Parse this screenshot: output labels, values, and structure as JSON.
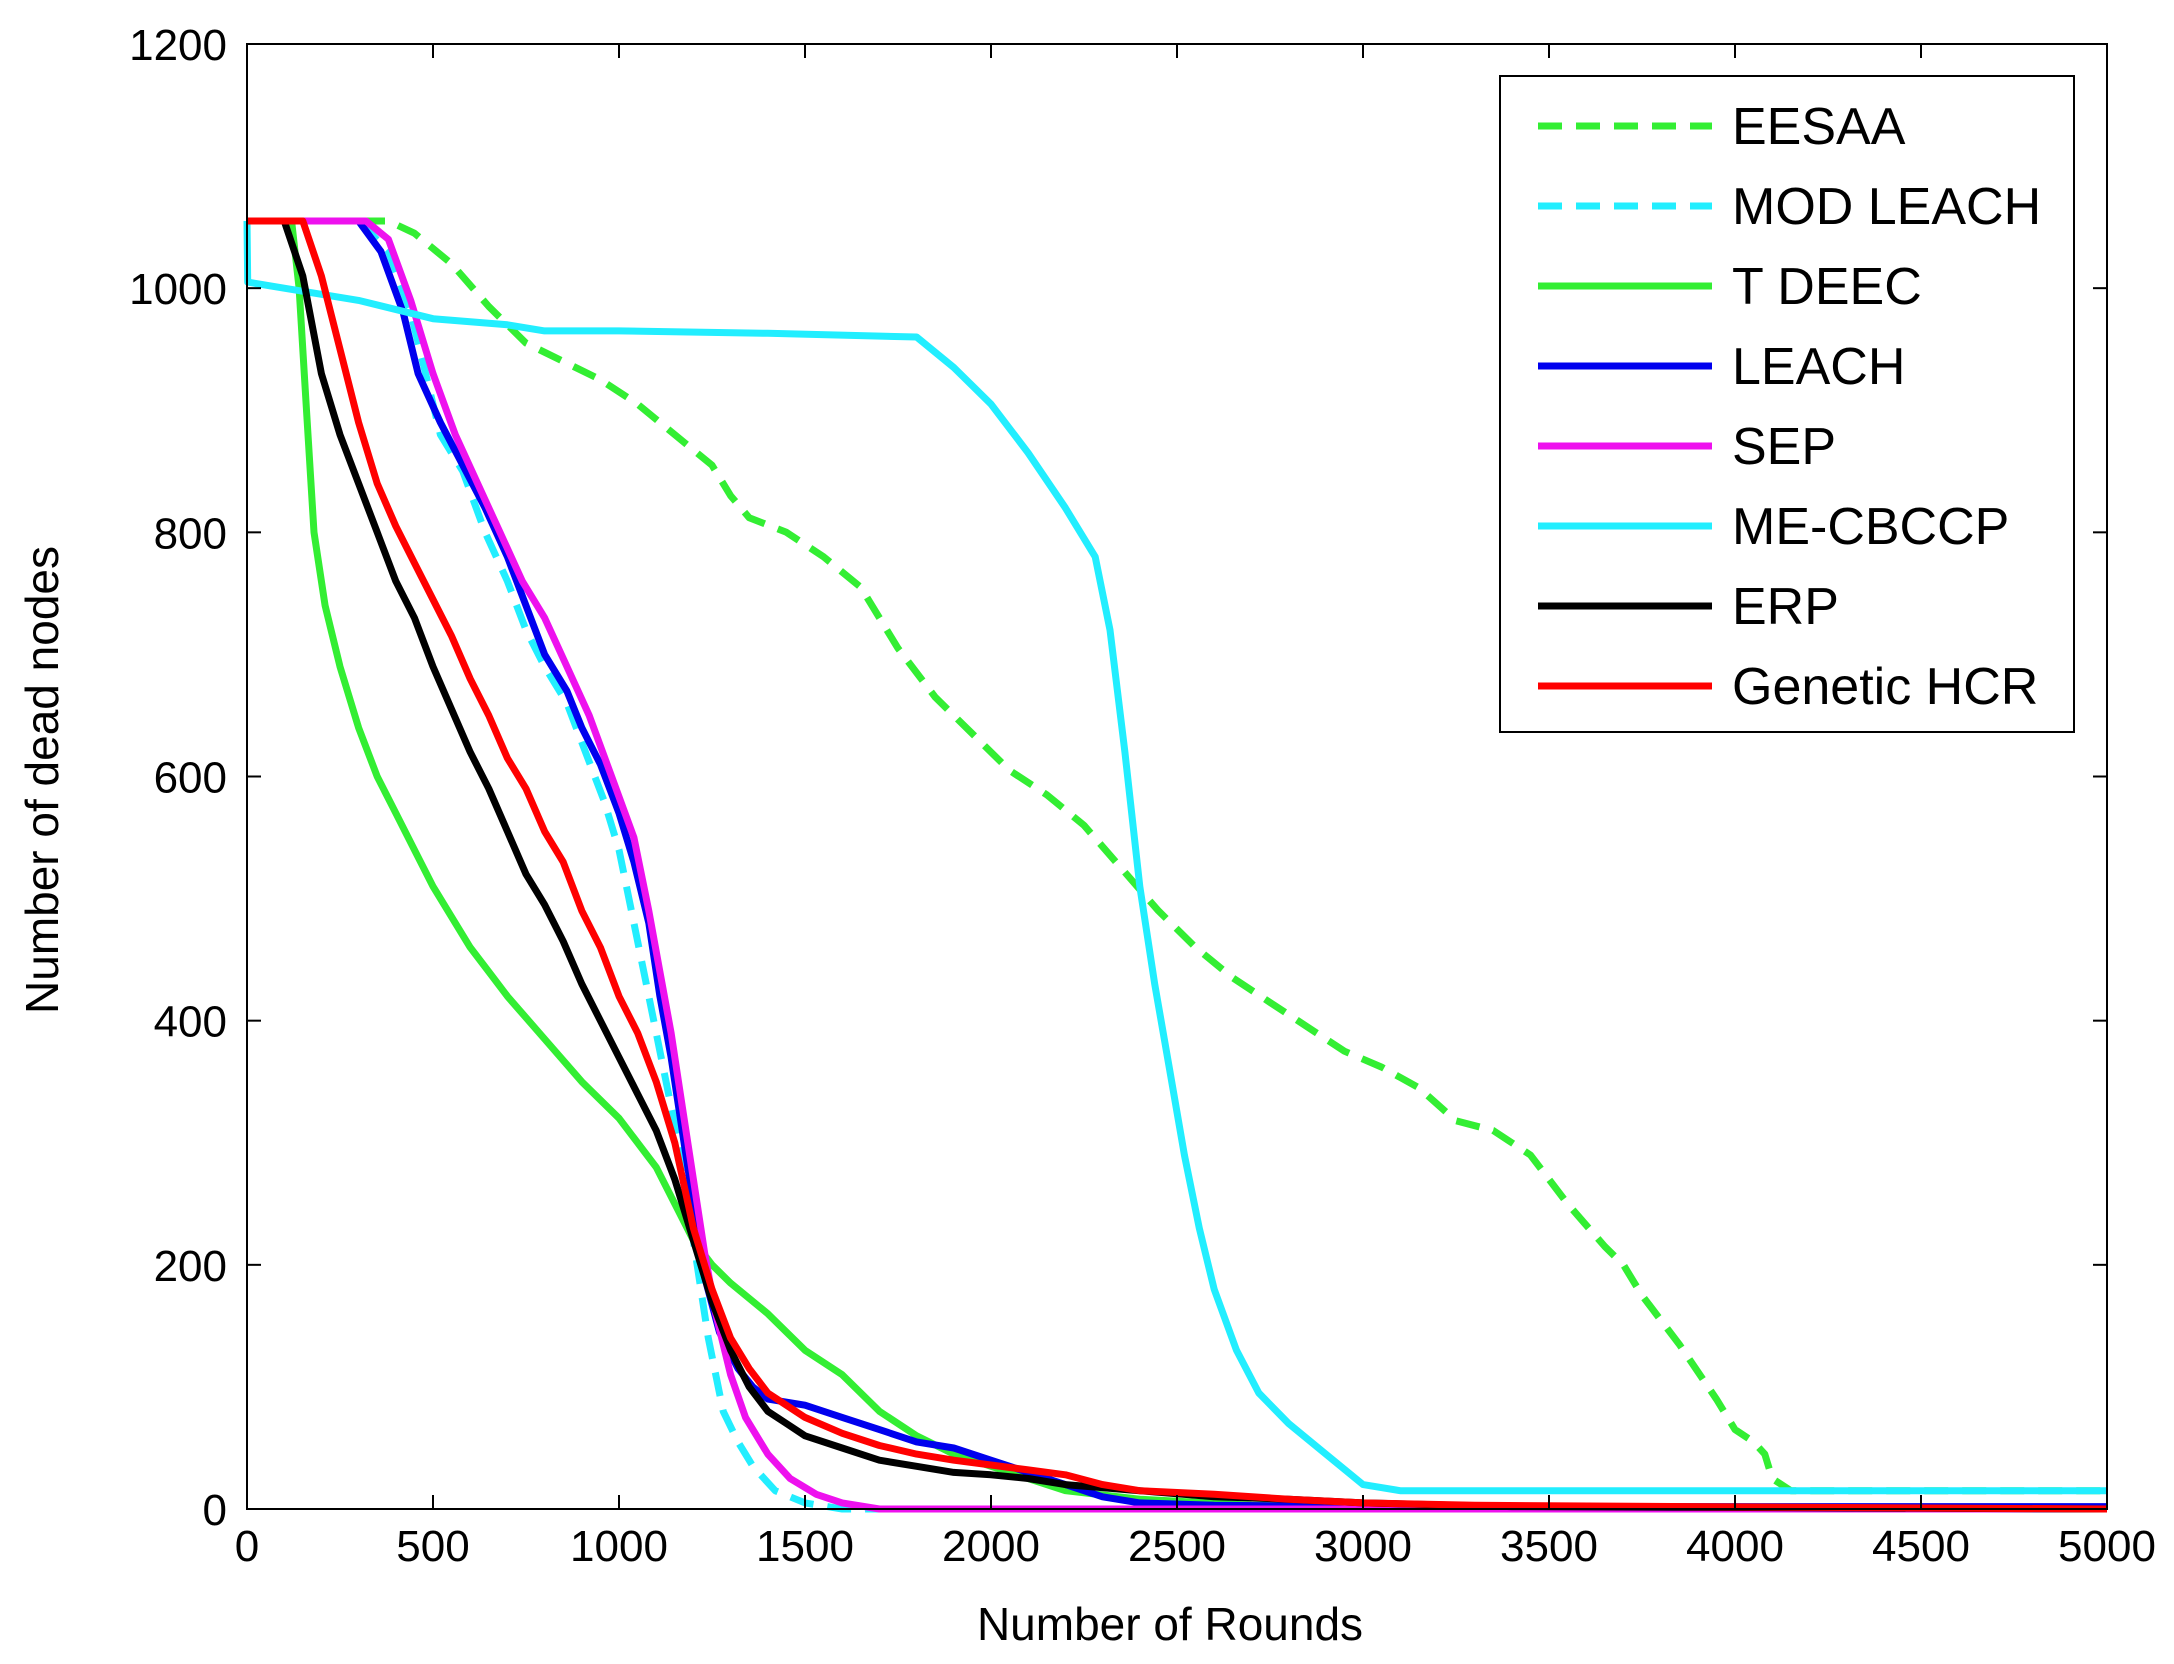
{
  "chart_data": {
    "type": "line",
    "title": "",
    "xlabel": "Number of Rounds",
    "ylabel": "Number of dead nodes",
    "xlim": [
      0,
      5000
    ],
    "ylim": [
      0,
      1200
    ],
    "xticks": [
      0,
      500,
      1000,
      1500,
      2000,
      2500,
      3000,
      3500,
      4000,
      4500,
      5000
    ],
    "yticks": [
      0,
      200,
      400,
      600,
      800,
      1000,
      1200
    ],
    "grid": false,
    "legend_position": "top-right",
    "series": [
      {
        "name": "EESAA",
        "color": "#33ee33",
        "dash": "dashed",
        "points": [
          [
            0,
            1055
          ],
          [
            380,
            1055
          ],
          [
            450,
            1045
          ],
          [
            550,
            1020
          ],
          [
            650,
            985
          ],
          [
            750,
            955
          ],
          [
            850,
            940
          ],
          [
            950,
            925
          ],
          [
            1050,
            905
          ],
          [
            1150,
            880
          ],
          [
            1250,
            855
          ],
          [
            1300,
            830
          ],
          [
            1350,
            812
          ],
          [
            1450,
            800
          ],
          [
            1550,
            780
          ],
          [
            1650,
            755
          ],
          [
            1750,
            705
          ],
          [
            1850,
            665
          ],
          [
            1950,
            635
          ],
          [
            2050,
            605
          ],
          [
            2150,
            585
          ],
          [
            2250,
            560
          ],
          [
            2350,
            525
          ],
          [
            2450,
            490
          ],
          [
            2550,
            460
          ],
          [
            2650,
            435
          ],
          [
            2750,
            415
          ],
          [
            2850,
            395
          ],
          [
            2950,
            375
          ],
          [
            3050,
            362
          ],
          [
            3150,
            345
          ],
          [
            3250,
            318
          ],
          [
            3350,
            310
          ],
          [
            3450,
            290
          ],
          [
            3550,
            250
          ],
          [
            3650,
            215
          ],
          [
            3700,
            200
          ],
          [
            3750,
            175
          ],
          [
            3850,
            135
          ],
          [
            3950,
            90
          ],
          [
            4000,
            65
          ],
          [
            4050,
            55
          ],
          [
            4080,
            45
          ],
          [
            4100,
            25
          ],
          [
            4150,
            15
          ],
          [
            5000,
            15
          ]
        ]
      },
      {
        "name": "MOD LEACH",
        "color": "#22eeff",
        "dash": "dashed",
        "points": [
          [
            0,
            1055
          ],
          [
            300,
            1055
          ],
          [
            380,
            1030
          ],
          [
            440,
            980
          ],
          [
            480,
            930
          ],
          [
            520,
            880
          ],
          [
            580,
            850
          ],
          [
            640,
            800
          ],
          [
            700,
            760
          ],
          [
            750,
            720
          ],
          [
            800,
            690
          ],
          [
            860,
            660
          ],
          [
            910,
            620
          ],
          [
            960,
            580
          ],
          [
            1000,
            540
          ],
          [
            1040,
            480
          ],
          [
            1080,
            420
          ],
          [
            1120,
            360
          ],
          [
            1160,
            300
          ],
          [
            1200,
            220
          ],
          [
            1240,
            140
          ],
          [
            1280,
            80
          ],
          [
            1320,
            55
          ],
          [
            1360,
            35
          ],
          [
            1420,
            15
          ],
          [
            1500,
            5
          ],
          [
            1600,
            0
          ],
          [
            5000,
            0
          ]
        ]
      },
      {
        "name": "T DEEC",
        "color": "#33ee33",
        "dash": "solid",
        "points": [
          [
            0,
            1055
          ],
          [
            120,
            1055
          ],
          [
            140,
            1000
          ],
          [
            160,
            900
          ],
          [
            180,
            800
          ],
          [
            210,
            740
          ],
          [
            250,
            690
          ],
          [
            300,
            640
          ],
          [
            350,
            600
          ],
          [
            400,
            570
          ],
          [
            450,
            540
          ],
          [
            500,
            510
          ],
          [
            550,
            485
          ],
          [
            600,
            460
          ],
          [
            650,
            440
          ],
          [
            700,
            420
          ],
          [
            800,
            385
          ],
          [
            900,
            350
          ],
          [
            1000,
            320
          ],
          [
            1100,
            280
          ],
          [
            1150,
            250
          ],
          [
            1200,
            220
          ],
          [
            1250,
            200
          ],
          [
            1300,
            185
          ],
          [
            1400,
            160
          ],
          [
            1500,
            130
          ],
          [
            1600,
            110
          ],
          [
            1700,
            80
          ],
          [
            1800,
            60
          ],
          [
            1900,
            45
          ],
          [
            2000,
            35
          ],
          [
            2100,
            25
          ],
          [
            2200,
            15
          ],
          [
            2400,
            8
          ],
          [
            2700,
            3
          ],
          [
            3300,
            0
          ],
          [
            5000,
            0
          ]
        ]
      },
      {
        "name": "LEACH",
        "color": "#0000ee",
        "dash": "solid",
        "points": [
          [
            0,
            1055
          ],
          [
            300,
            1055
          ],
          [
            360,
            1030
          ],
          [
            420,
            980
          ],
          [
            460,
            930
          ],
          [
            520,
            890
          ],
          [
            580,
            855
          ],
          [
            640,
            820
          ],
          [
            700,
            780
          ],
          [
            750,
            740
          ],
          [
            800,
            700
          ],
          [
            860,
            670
          ],
          [
            900,
            640
          ],
          [
            950,
            610
          ],
          [
            1000,
            570
          ],
          [
            1040,
            530
          ],
          [
            1080,
            480
          ],
          [
            1110,
            420
          ],
          [
            1140,
            370
          ],
          [
            1170,
            310
          ],
          [
            1200,
            250
          ],
          [
            1230,
            190
          ],
          [
            1270,
            145
          ],
          [
            1320,
            115
          ],
          [
            1360,
            100
          ],
          [
            1400,
            90
          ],
          [
            1500,
            85
          ],
          [
            1600,
            75
          ],
          [
            1700,
            65
          ],
          [
            1800,
            55
          ],
          [
            1900,
            50
          ],
          [
            2000,
            40
          ],
          [
            2100,
            30
          ],
          [
            2200,
            20
          ],
          [
            2300,
            10
          ],
          [
            2400,
            5
          ],
          [
            2600,
            3
          ],
          [
            3000,
            2
          ],
          [
            4600,
            2
          ],
          [
            5000,
            2
          ]
        ]
      },
      {
        "name": "SEP",
        "color": "#ee11ee",
        "dash": "solid",
        "points": [
          [
            0,
            1055
          ],
          [
            320,
            1055
          ],
          [
            380,
            1040
          ],
          [
            440,
            990
          ],
          [
            500,
            930
          ],
          [
            560,
            880
          ],
          [
            620,
            840
          ],
          [
            680,
            800
          ],
          [
            740,
            760
          ],
          [
            800,
            730
          ],
          [
            860,
            690
          ],
          [
            920,
            650
          ],
          [
            980,
            600
          ],
          [
            1040,
            550
          ],
          [
            1080,
            490
          ],
          [
            1110,
            440
          ],
          [
            1140,
            390
          ],
          [
            1170,
            330
          ],
          [
            1200,
            270
          ],
          [
            1230,
            210
          ],
          [
            1260,
            160
          ],
          [
            1300,
            110
          ],
          [
            1340,
            75
          ],
          [
            1400,
            45
          ],
          [
            1460,
            25
          ],
          [
            1530,
            12
          ],
          [
            1600,
            5
          ],
          [
            1700,
            0
          ],
          [
            5000,
            0
          ]
        ]
      },
      {
        "name": "ME-CBCCP",
        "color": "#22eeff",
        "dash": "solid",
        "points": [
          [
            0,
            1055
          ],
          [
            2,
            1005
          ],
          [
            100,
            1000
          ],
          [
            300,
            990
          ],
          [
            500,
            975
          ],
          [
            700,
            970
          ],
          [
            800,
            965
          ],
          [
            1000,
            965
          ],
          [
            1400,
            963
          ],
          [
            1800,
            960
          ],
          [
            1900,
            935
          ],
          [
            2000,
            905
          ],
          [
            2100,
            865
          ],
          [
            2200,
            820
          ],
          [
            2280,
            780
          ],
          [
            2320,
            720
          ],
          [
            2360,
            620
          ],
          [
            2400,
            510
          ],
          [
            2440,
            430
          ],
          [
            2480,
            360
          ],
          [
            2520,
            290
          ],
          [
            2560,
            230
          ],
          [
            2600,
            180
          ],
          [
            2660,
            130
          ],
          [
            2720,
            95
          ],
          [
            2800,
            70
          ],
          [
            2900,
            45
          ],
          [
            3000,
            20
          ],
          [
            3100,
            15
          ],
          [
            5000,
            15
          ]
        ]
      },
      {
        "name": "ERP",
        "color": "#000000",
        "dash": "solid",
        "points": [
          [
            0,
            1055
          ],
          [
            100,
            1055
          ],
          [
            150,
            1010
          ],
          [
            200,
            930
          ],
          [
            250,
            880
          ],
          [
            300,
            840
          ],
          [
            350,
            800
          ],
          [
            400,
            760
          ],
          [
            450,
            730
          ],
          [
            500,
            690
          ],
          [
            550,
            655
          ],
          [
            600,
            620
          ],
          [
            650,
            590
          ],
          [
            700,
            555
          ],
          [
            750,
            520
          ],
          [
            800,
            495
          ],
          [
            850,
            465
          ],
          [
            900,
            430
          ],
          [
            950,
            400
          ],
          [
            1000,
            370
          ],
          [
            1050,
            340
          ],
          [
            1100,
            310
          ],
          [
            1150,
            270
          ],
          [
            1200,
            220
          ],
          [
            1250,
            170
          ],
          [
            1300,
            130
          ],
          [
            1350,
            100
          ],
          [
            1400,
            80
          ],
          [
            1450,
            70
          ],
          [
            1500,
            60
          ],
          [
            1600,
            50
          ],
          [
            1700,
            40
          ],
          [
            1800,
            35
          ],
          [
            1900,
            30
          ],
          [
            2000,
            28
          ],
          [
            2100,
            25
          ],
          [
            2200,
            20
          ],
          [
            2400,
            15
          ],
          [
            2600,
            10
          ],
          [
            2800,
            8
          ],
          [
            3000,
            5
          ],
          [
            3400,
            2
          ],
          [
            5000,
            0
          ]
        ]
      },
      {
        "name": "Genetic HCR",
        "color": "#ff0000",
        "dash": "solid",
        "points": [
          [
            0,
            1055
          ],
          [
            150,
            1055
          ],
          [
            200,
            1010
          ],
          [
            250,
            950
          ],
          [
            300,
            890
          ],
          [
            350,
            840
          ],
          [
            400,
            805
          ],
          [
            450,
            775
          ],
          [
            500,
            745
          ],
          [
            550,
            715
          ],
          [
            600,
            680
          ],
          [
            650,
            650
          ],
          [
            700,
            615
          ],
          [
            750,
            590
          ],
          [
            800,
            555
          ],
          [
            850,
            530
          ],
          [
            900,
            490
          ],
          [
            950,
            460
          ],
          [
            1000,
            420
          ],
          [
            1050,
            390
          ],
          [
            1100,
            350
          ],
          [
            1150,
            300
          ],
          [
            1200,
            230
          ],
          [
            1250,
            180
          ],
          [
            1300,
            140
          ],
          [
            1350,
            115
          ],
          [
            1400,
            95
          ],
          [
            1500,
            75
          ],
          [
            1600,
            62
          ],
          [
            1700,
            52
          ],
          [
            1800,
            45
          ],
          [
            1900,
            40
          ],
          [
            2000,
            36
          ],
          [
            2100,
            32
          ],
          [
            2200,
            28
          ],
          [
            2300,
            20
          ],
          [
            2400,
            15
          ],
          [
            2600,
            12
          ],
          [
            2800,
            8
          ],
          [
            3000,
            5
          ],
          [
            3300,
            3
          ],
          [
            5000,
            0
          ]
        ]
      }
    ]
  }
}
